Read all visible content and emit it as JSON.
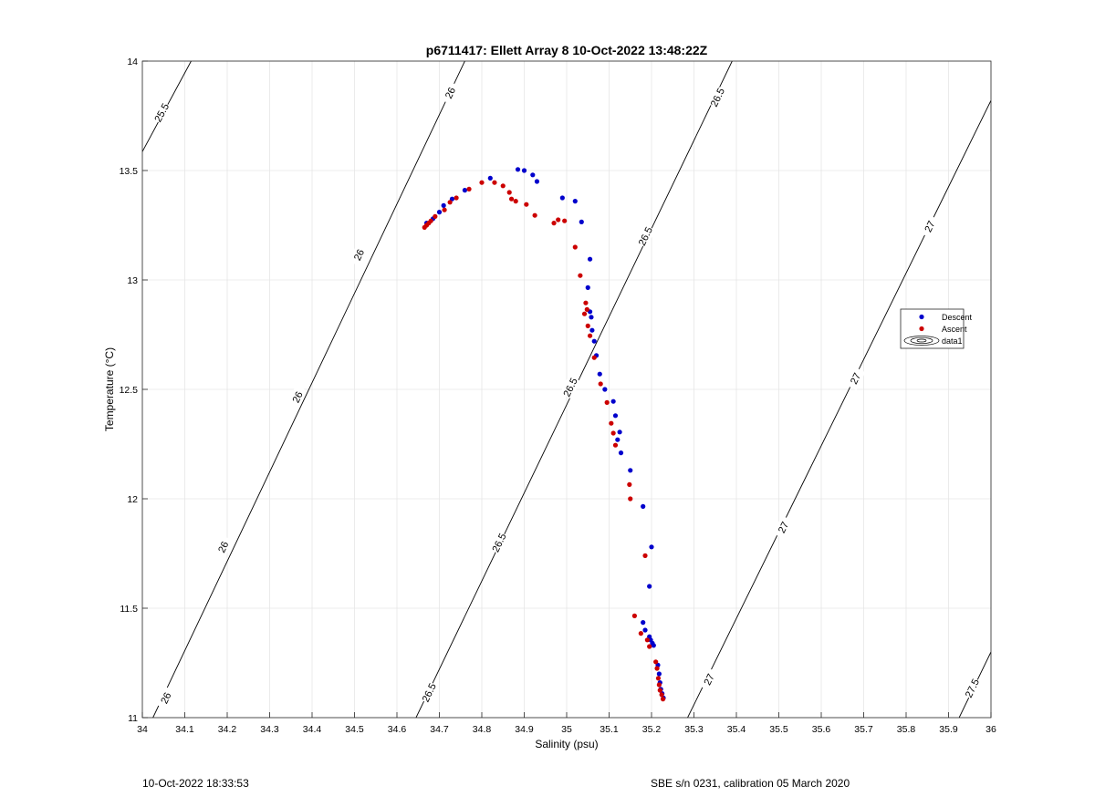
{
  "chart_data": {
    "type": "scatter",
    "title": "p6711417: Ellett Array 8 10-Oct-2022 13:48:22Z",
    "xlabel": "Salinity (psu)",
    "ylabel": "Temperature (°C)",
    "xlim": [
      34,
      36
    ],
    "ylim": [
      11,
      14
    ],
    "xticks": [
      34,
      34.1,
      34.2,
      34.3,
      34.4,
      34.5,
      34.6,
      34.7,
      34.8,
      34.9,
      35,
      35.1,
      35.2,
      35.3,
      35.4,
      35.5,
      35.6,
      35.7,
      35.8,
      35.9,
      36
    ],
    "xtick_labels": [
      "34",
      "34.1",
      "34.2",
      "34.3",
      "34.4",
      "34.5",
      "34.6",
      "34.7",
      "34.8",
      "34.9",
      "35",
      "35.1",
      "35.2",
      "35.3",
      "35.4",
      "35.5",
      "35.6",
      "35.7",
      "35.8",
      "35.9",
      "36"
    ],
    "yticks": [
      11,
      11.5,
      12,
      12.5,
      13,
      13.5,
      14
    ],
    "ytick_labels": [
      "11",
      "11.5",
      "12",
      "12.5",
      "13",
      "13.5",
      "14"
    ],
    "grid": true,
    "legend_position": "right",
    "series": [
      {
        "name": "Descent",
        "color": "#0000cc",
        "marker": "dot",
        "points": [
          [
            34.67,
            13.26
          ],
          [
            34.685,
            13.28
          ],
          [
            34.7,
            13.31
          ],
          [
            34.71,
            13.34
          ],
          [
            34.73,
            13.37
          ],
          [
            34.76,
            13.41
          ],
          [
            34.82,
            13.465
          ],
          [
            34.885,
            13.505
          ],
          [
            34.9,
            13.5
          ],
          [
            34.92,
            13.48
          ],
          [
            34.93,
            13.45
          ],
          [
            34.99,
            13.375
          ],
          [
            35.02,
            13.36
          ],
          [
            35.035,
            13.265
          ],
          [
            35.055,
            13.095
          ],
          [
            35.05,
            12.965
          ],
          [
            35.055,
            12.855
          ],
          [
            35.058,
            12.83
          ],
          [
            35.06,
            12.77
          ],
          [
            35.065,
            12.72
          ],
          [
            35.07,
            12.655
          ],
          [
            35.078,
            12.57
          ],
          [
            35.09,
            12.5
          ],
          [
            35.11,
            12.445
          ],
          [
            35.115,
            12.38
          ],
          [
            35.125,
            12.305
          ],
          [
            35.12,
            12.27
          ],
          [
            35.128,
            12.21
          ],
          [
            35.15,
            12.13
          ],
          [
            35.18,
            11.965
          ],
          [
            35.2,
            11.78
          ],
          [
            35.195,
            11.6
          ],
          [
            35.18,
            11.435
          ],
          [
            35.185,
            11.4
          ],
          [
            35.195,
            11.37
          ],
          [
            35.198,
            11.355
          ],
          [
            35.202,
            11.34
          ],
          [
            35.205,
            11.33
          ],
          [
            35.215,
            11.24
          ],
          [
            35.218,
            11.2
          ],
          [
            35.22,
            11.16
          ],
          [
            35.222,
            11.13
          ],
          [
            35.225,
            11.11
          ],
          [
            35.228,
            11.09
          ]
        ]
      },
      {
        "name": "Ascent",
        "color": "#cc0000",
        "marker": "dot",
        "points": [
          [
            34.665,
            13.24
          ],
          [
            34.67,
            13.25
          ],
          [
            34.675,
            13.26
          ],
          [
            34.68,
            13.27
          ],
          [
            34.69,
            13.29
          ],
          [
            34.712,
            13.32
          ],
          [
            34.725,
            13.355
          ],
          [
            34.74,
            13.375
          ],
          [
            34.77,
            13.415
          ],
          [
            34.8,
            13.445
          ],
          [
            34.83,
            13.445
          ],
          [
            34.85,
            13.43
          ],
          [
            34.865,
            13.4
          ],
          [
            34.87,
            13.37
          ],
          [
            34.88,
            13.36
          ],
          [
            34.905,
            13.345
          ],
          [
            34.925,
            13.295
          ],
          [
            34.97,
            13.26
          ],
          [
            34.98,
            13.275
          ],
          [
            34.995,
            13.27
          ],
          [
            35.02,
            13.15
          ],
          [
            35.032,
            13.02
          ],
          [
            35.045,
            12.895
          ],
          [
            35.048,
            12.865
          ],
          [
            35.042,
            12.845
          ],
          [
            35.05,
            12.79
          ],
          [
            35.055,
            12.745
          ],
          [
            35.065,
            12.645
          ],
          [
            35.08,
            12.525
          ],
          [
            35.095,
            12.44
          ],
          [
            35.105,
            12.345
          ],
          [
            35.11,
            12.3
          ],
          [
            35.115,
            12.245
          ],
          [
            35.148,
            12.065
          ],
          [
            35.15,
            12.0
          ],
          [
            35.185,
            11.74
          ],
          [
            35.16,
            11.465
          ],
          [
            35.175,
            11.385
          ],
          [
            35.19,
            11.355
          ],
          [
            35.195,
            11.325
          ],
          [
            35.21,
            11.255
          ],
          [
            35.213,
            11.225
          ],
          [
            35.216,
            11.18
          ],
          [
            35.218,
            11.15
          ],
          [
            35.22,
            11.125
          ],
          [
            35.224,
            11.105
          ],
          [
            35.227,
            11.085
          ]
        ]
      }
    ],
    "density_contours": {
      "name": "data1",
      "color": "#000000",
      "lines": [
        {
          "label": "25.5",
          "s1": 33.99,
          "t1": 13.55,
          "s2": 34.115,
          "t2": 14.0,
          "labels_at": [
            [
              34.045,
              13.765
            ]
          ]
        },
        {
          "label": "26",
          "s1": 34.025,
          "t1": 11.0,
          "s2": 34.76,
          "t2": 14.0,
          "labels_at": [
            [
              34.055,
              11.09
            ],
            [
              34.19,
              11.78
            ],
            [
              34.365,
              12.465
            ],
            [
              34.51,
              13.115
            ],
            [
              34.725,
              13.855
            ]
          ]
        },
        {
          "label": "26.5",
          "s1": 34.645,
          "t1": 11.0,
          "s2": 35.39,
          "t2": 14.0,
          "labels_at": [
            [
              34.675,
              11.115
            ],
            [
              34.84,
              11.8
            ],
            [
              35.008,
              12.51
            ],
            [
              35.185,
              13.2
            ],
            [
              35.355,
              13.835
            ]
          ]
        },
        {
          "label": "27",
          "s1": 35.285,
          "t1": 11.0,
          "s2": 36.0,
          "t2": 13.82,
          "labels_at": [
            [
              35.335,
              11.175
            ],
            [
              35.51,
              11.87
            ],
            [
              35.68,
              12.55
            ],
            [
              35.855,
              13.245
            ]
          ]
        },
        {
          "label": "27.5",
          "s1": 35.925,
          "t1": 11.0,
          "s2": 36.0,
          "t2": 11.3,
          "labels_at": [
            [
              35.955,
              11.135
            ]
          ]
        }
      ]
    }
  },
  "legend": {
    "descent_label": "Descent",
    "ascent_label": "Ascent",
    "contour_label": "data1"
  },
  "footer": {
    "left": "10-Oct-2022 18:33:53",
    "right": "SBE s/n 0231, calibration 05 March 2020"
  }
}
